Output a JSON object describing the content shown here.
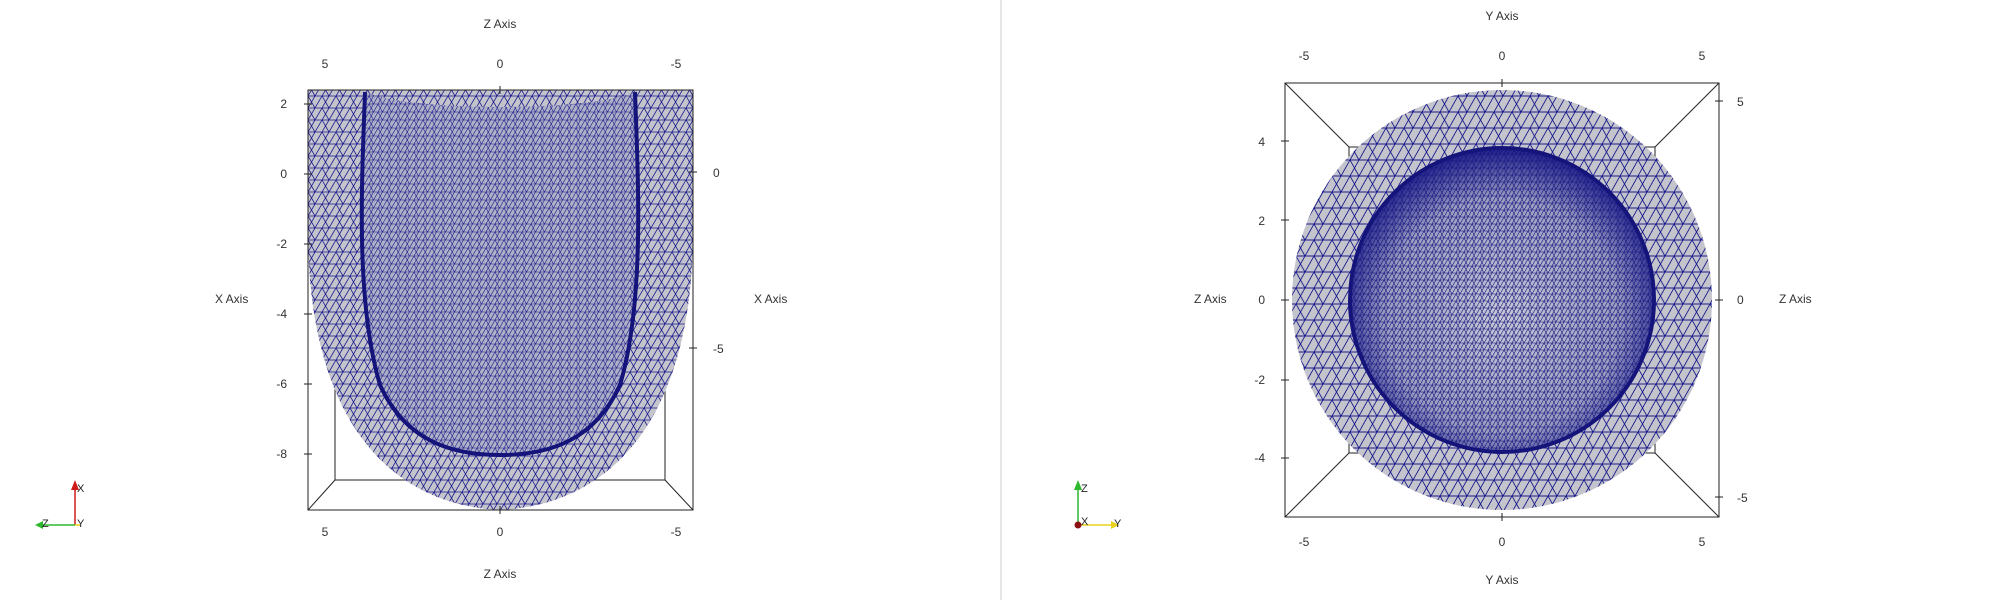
{
  "views": {
    "left": {
      "top_axis_title": "Z Axis",
      "bottom_axis_title": "Z Axis",
      "left_axis_title": "X Axis",
      "right_axis_title": "X Axis",
      "top_ticks": [
        "5",
        "0",
        "-5"
      ],
      "bottom_ticks": [
        "5",
        "0",
        "-5"
      ],
      "left_ticks": [
        "2",
        "0",
        "-2",
        "-4",
        "-6",
        "-8"
      ],
      "right_ticks": [
        "0",
        "-5"
      ],
      "orientation_labels": {
        "up": "X",
        "left": "Z",
        "right": "Y"
      }
    },
    "right": {
      "top_axis_title": "Y Axis",
      "bottom_axis_title": "Y Axis",
      "left_axis_title": "Z Axis",
      "right_axis_title": "Z Axis",
      "top_ticks": [
        "-5",
        "0",
        "5"
      ],
      "bottom_ticks": [
        "-5",
        "0",
        "5"
      ],
      "left_ticks": [
        "4",
        "2",
        "0",
        "-2",
        "-4"
      ],
      "right_ticks": [
        "5",
        "0",
        "-5"
      ],
      "orientation_labels": {
        "up": "Z",
        "center": "X",
        "right": "Y"
      }
    }
  },
  "colors": {
    "mesh_edge": "#1a1a8c",
    "surface": "#c4c4cc",
    "inner_surface": "#b4b4c4",
    "axis_x": "#d11a1a",
    "axis_y": "#e8d21a",
    "axis_z": "#2db82d"
  }
}
